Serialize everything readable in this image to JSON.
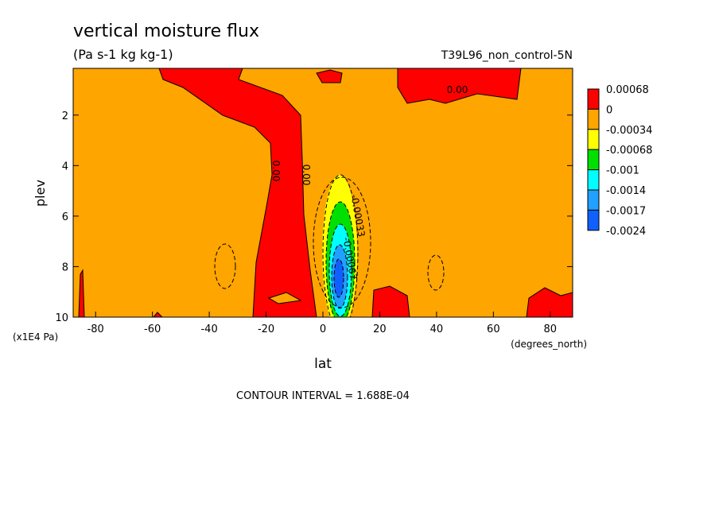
{
  "chart_data": {
    "type": "contour",
    "title": "vertical moisture flux",
    "subtitle": "(Pa s-1 kg kg-1)",
    "dataset": "T39L96_non_control-5N",
    "xlabel": "lat",
    "ylabel": "plev",
    "x_units": "(degrees_north)",
    "y_units": "(x1E4 Pa)",
    "xlim": [
      -87.9,
      87.9
    ],
    "ylim": [
      10,
      0.15
    ],
    "xticks": [
      -80,
      -60,
      -40,
      -20,
      0,
      20,
      40,
      60,
      80
    ],
    "yticks": [
      2,
      4,
      6,
      8,
      10
    ],
    "colorbar": {
      "levels": [
        0.00068,
        0,
        -0.00034,
        -0.00068,
        -0.001,
        -0.0014,
        -0.0017,
        -0.0024
      ],
      "colors": [
        "#ff0000",
        "#ffa500",
        "#ffff00",
        "#00e000",
        "#00ffff",
        "#20a0ff",
        "#1060ff"
      ]
    },
    "contour_labels": [
      "0.00",
      "0.00",
      "0.00",
      "-0.00033",
      "-0.00067"
    ],
    "footnote": "CONTOUR INTERVAL = 1.688E-04"
  }
}
